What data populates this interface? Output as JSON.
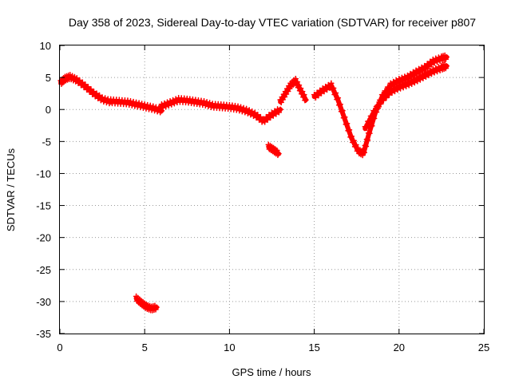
{
  "chart_data": {
    "type": "scatter",
    "title": "Day 358 of 2023, Sidereal Day-to-day VTEC variation (SDTVAR) for receiver p807",
    "xlabel": "GPS time / hours",
    "ylabel": "SDTVAR / TECUs",
    "xlim": [
      0,
      25
    ],
    "ylim": [
      -35,
      10
    ],
    "xticks": [
      0,
      5,
      10,
      15,
      20,
      25
    ],
    "yticks": [
      10,
      5,
      0,
      -5,
      -10,
      -15,
      -20,
      -25,
      -30,
      -35
    ],
    "grid": true,
    "colors": {
      "series": "#ff0000",
      "grid": "#9a9a9a",
      "frame": "#000000"
    },
    "series": [
      {
        "name": "SDTVAR",
        "segments": [
          {
            "x": [
              0.05,
              0.3,
              0.6,
              1.0,
              1.5,
              2.0,
              2.5,
              3.0
            ],
            "y": [
              4.2,
              4.8,
              5.1,
              4.6,
              3.6,
              2.5,
              1.6,
              1.2
            ]
          },
          {
            "x": [
              3.0,
              3.5,
              4.0,
              4.5,
              5.0,
              5.5,
              6.0
            ],
            "y": [
              1.3,
              1.2,
              1.1,
              0.8,
              0.5,
              0.2,
              -0.2
            ]
          },
          {
            "x": [
              6.0,
              6.5,
              7.0,
              7.5,
              8.0,
              8.5,
              9.0
            ],
            "y": [
              0.5,
              1.0,
              1.5,
              1.4,
              1.2,
              1.0,
              0.6
            ]
          },
          {
            "x": [
              9.0,
              9.5,
              10.0,
              10.5,
              11.0,
              11.5,
              12.0,
              12.5,
              13.0
            ],
            "y": [
              0.6,
              0.5,
              0.4,
              0.2,
              -0.2,
              -0.8,
              -1.8,
              -0.8,
              0.0
            ]
          },
          {
            "x": [
              13.0,
              13.3,
              13.6,
              13.9,
              14.2,
              14.5
            ],
            "y": [
              1.2,
              2.5,
              3.8,
              4.5,
              3.0,
              1.5
            ]
          },
          {
            "x": [
              15.0,
              15.5,
              16.0,
              16.4,
              16.8,
              17.2,
              17.6,
              17.9,
              18.2,
              18.6,
              19.0,
              19.5,
              20.0
            ],
            "y": [
              2.0,
              3.0,
              3.8,
              1.5,
              -1.5,
              -4.5,
              -6.5,
              -6.9,
              -4.0,
              -0.5,
              2.0,
              3.8,
              4.5
            ]
          },
          {
            "x": [
              20.0,
              20.5,
              21.0,
              21.5,
              22.0,
              22.5,
              22.8
            ],
            "y": [
              4.5,
              5.0,
              5.8,
              6.5,
              7.5,
              8.0,
              8.2
            ]
          },
          {
            "x": [
              18.0,
              18.5,
              19.0,
              19.5,
              20.0,
              20.5,
              21.0,
              21.5,
              22.0,
              22.5,
              22.8
            ],
            "y": [
              -3.0,
              -0.5,
              1.5,
              2.8,
              3.5,
              4.0,
              4.6,
              5.3,
              6.0,
              6.5,
              6.8
            ]
          },
          {
            "x": [
              12.3,
              12.6,
              12.9
            ],
            "y": [
              -5.8,
              -6.3,
              -6.9
            ]
          },
          {
            "x": [
              4.5,
              4.8,
              5.1,
              5.4,
              5.7
            ],
            "y": [
              -29.5,
              -30.2,
              -30.8,
              -31.1,
              -30.9
            ]
          }
        ]
      }
    ]
  }
}
